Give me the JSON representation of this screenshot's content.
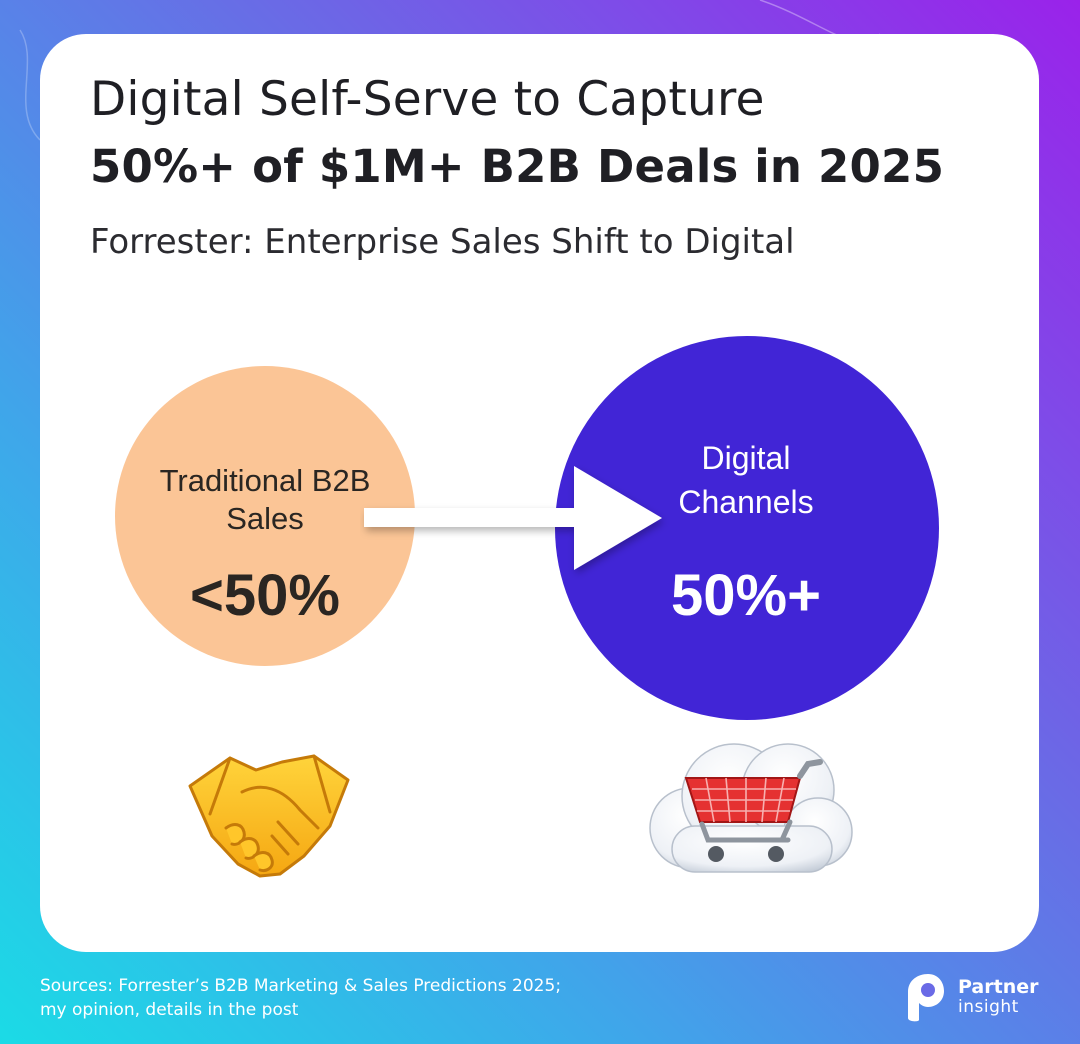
{
  "header": {
    "title_line1": "Digital Self-Serve to Capture",
    "title_line2": "50%+ of $1M+ B2B Deals in 2025",
    "subtitle": "Forrester: Enterprise Sales Shift to Digital"
  },
  "comparison": {
    "left": {
      "label_line1": "Traditional B2B",
      "label_line2": "Sales",
      "value": "<50%",
      "color": "#fbc596",
      "icon": "handshake-icon"
    },
    "right": {
      "label_line1": "Digital",
      "label_line2": "Channels",
      "value": "50%+",
      "color": "#4125d6",
      "icon": "cloud-shopping-cart-icon"
    }
  },
  "footer": {
    "sources_line1": "Sources: Forrester’s B2B Marketing & Sales Predictions 2025;",
    "sources_line2": "my opinion, details in the post",
    "brand_line1": "Partner",
    "brand_line2": "insight"
  },
  "colors": {
    "gradient_start": "#1bdbe6",
    "gradient_end": "#9a22ea",
    "card": "#ffffff"
  }
}
